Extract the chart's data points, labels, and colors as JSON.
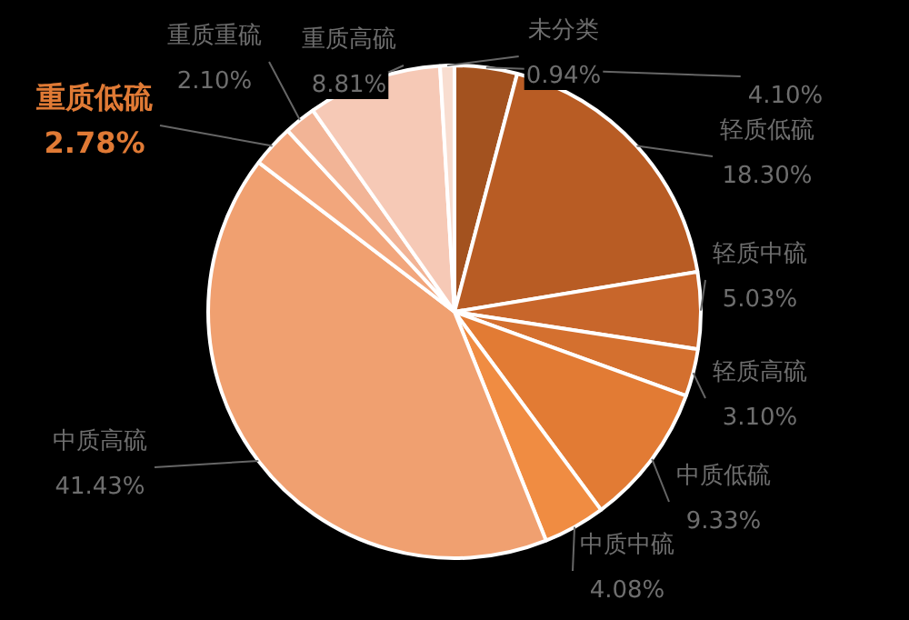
{
  "chart_data": {
    "type": "pie",
    "categories": [
      null,
      "轻质低硫",
      "轻质中硫",
      "轻质高硫",
      "中质低硫",
      "中质中硫",
      "中质高硫",
      "重质低硫",
      "重质重硫",
      "重质高硫",
      "未分类"
    ],
    "values": [
      4.1,
      18.3,
      5.03,
      3.1,
      9.33,
      4.08,
      41.43,
      2.78,
      2.1,
      8.81,
      0.94
    ],
    "colors": [
      "#a3521f",
      "#b85c24",
      "#c8662b",
      "#d4702f",
      "#e27b34",
      "#f08c42",
      "#f0a070",
      "#f2a67c",
      "#f2b496",
      "#f6c9b6",
      "#f8ddd0"
    ],
    "value_labels": [
      "4.10%",
      "18.30%",
      "5.03%",
      "3.10%",
      "9.33%",
      "4.08%",
      "41.43%",
      "2.78%",
      "2.10%",
      "8.81%",
      "0.94%"
    ],
    "legend": false
  }
}
